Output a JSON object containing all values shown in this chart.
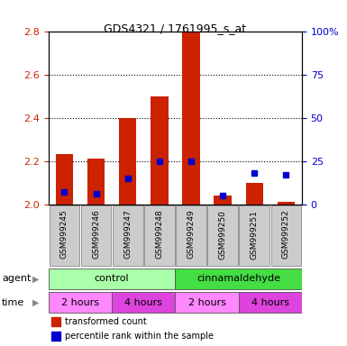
{
  "title": "GDS4321 / 1761995_s_at",
  "samples": [
    "GSM999245",
    "GSM999246",
    "GSM999247",
    "GSM999248",
    "GSM999249",
    "GSM999250",
    "GSM999251",
    "GSM999252"
  ],
  "red_values": [
    2.23,
    2.21,
    2.4,
    2.5,
    2.8,
    2.04,
    2.1,
    2.01
  ],
  "blue_percentiles": [
    7,
    6,
    15,
    25,
    25,
    5,
    18,
    17
  ],
  "ylim_left": [
    2.0,
    2.8
  ],
  "ylim_right": [
    0,
    100
  ],
  "yticks_left": [
    2.0,
    2.2,
    2.4,
    2.6,
    2.8
  ],
  "yticks_right": [
    0,
    25,
    50,
    75,
    100
  ],
  "agent_labels": [
    {
      "text": "control",
      "color": "#aaffaa",
      "span": [
        0,
        4
      ]
    },
    {
      "text": "cinnamaldehyde",
      "color": "#44dd44",
      "span": [
        4,
        8
      ]
    }
  ],
  "time_labels": [
    {
      "text": "2 hours",
      "color": "#ff88ff",
      "span": [
        0,
        2
      ]
    },
    {
      "text": "4 hours",
      "color": "#dd44dd",
      "span": [
        2,
        4
      ]
    },
    {
      "text": "2 hours",
      "color": "#ff88ff",
      "span": [
        4,
        6
      ]
    },
    {
      "text": "4 hours",
      "color": "#dd44dd",
      "span": [
        6,
        8
      ]
    }
  ],
  "bar_color": "#cc2200",
  "blue_color": "#0000cc",
  "sample_bg_color": "#cccccc",
  "chart_bg_color": "#ffffff",
  "legend_red": "transformed count",
  "legend_blue": "percentile rank within the sample",
  "left_tick_color": "#cc2200",
  "right_tick_color": "#0000cc"
}
